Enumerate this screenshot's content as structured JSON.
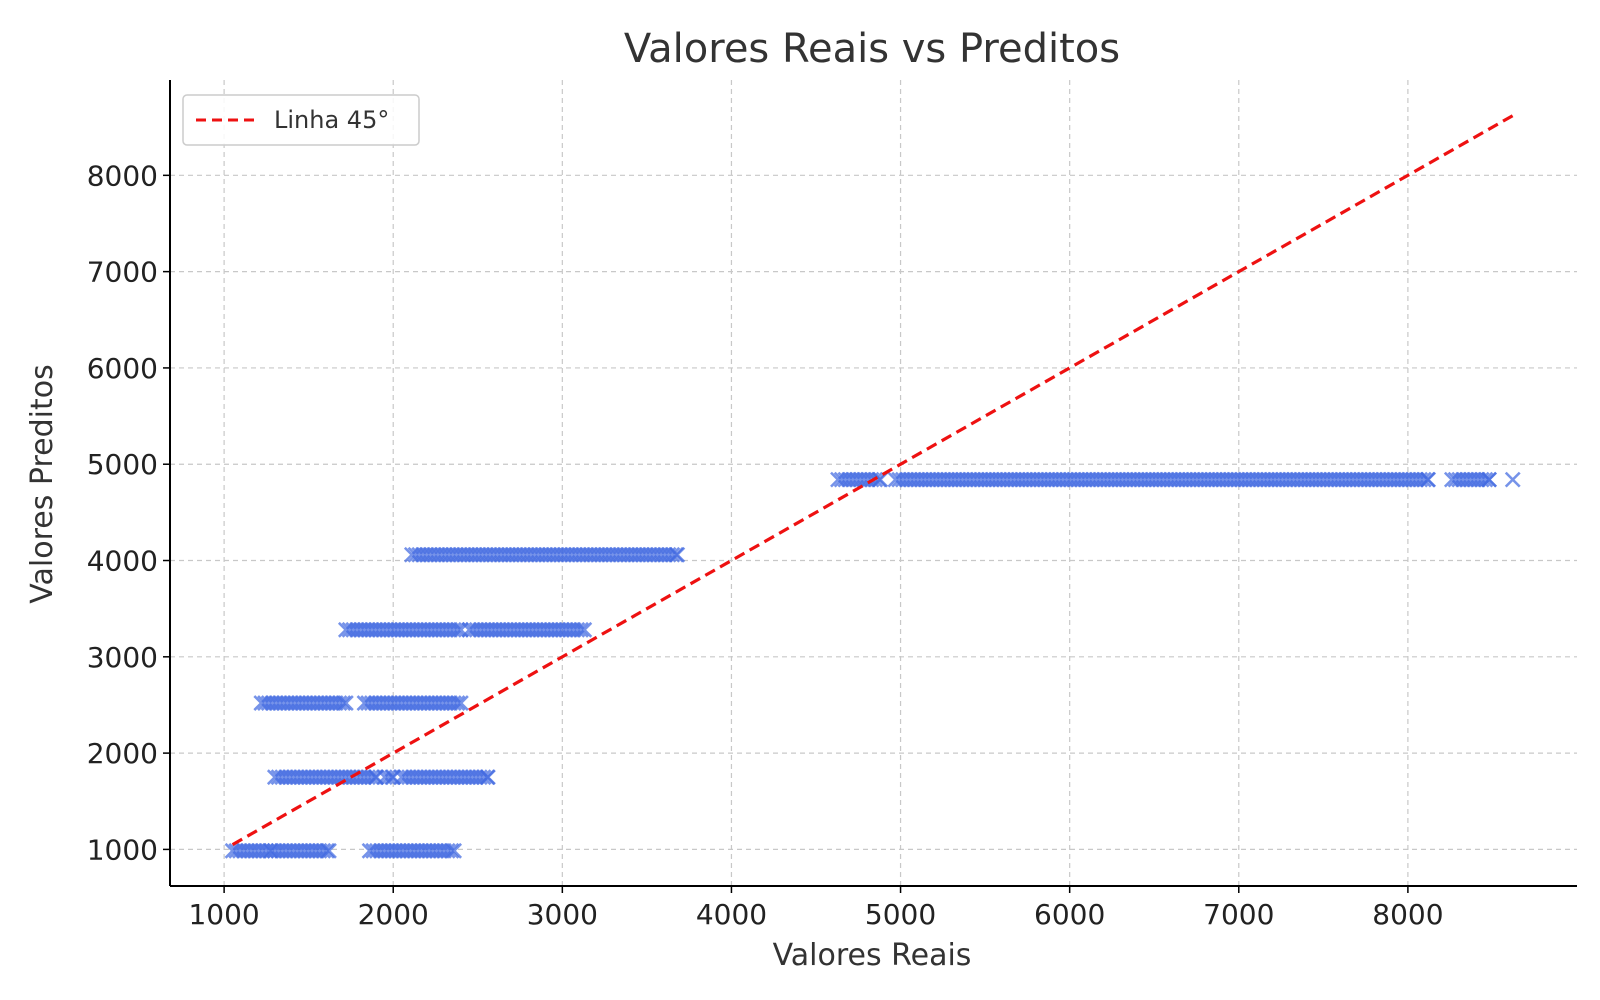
{
  "chart_data": {
    "type": "scatter",
    "title": "Valores Reais vs Preditos",
    "xlabel": "Valores Reais",
    "ylabel": "Valores Preditos",
    "xlim": [
      680,
      9000
    ],
    "ylim": [
      620,
      8990
    ],
    "xticks": [
      1000,
      2000,
      3000,
      4000,
      5000,
      6000,
      7000,
      8000
    ],
    "yticks": [
      1000,
      2000,
      3000,
      4000,
      5000,
      6000,
      7000,
      8000
    ],
    "grid": true,
    "legend": {
      "position": "upper-left",
      "entries": [
        "Linha 45°"
      ]
    },
    "series": [
      {
        "kind": "scatter",
        "marker": "x",
        "color": "#4169e1",
        "groups": [
          {
            "y": 985,
            "x_segments": [
              [
                1050,
                1280
              ],
              [
                1300,
                1620
              ],
              [
                1860,
                2360
              ]
            ]
          },
          {
            "y": 1750,
            "x_segments": [
              [
                1300,
                1900
              ],
              [
                1950,
                2000
              ],
              [
                2050,
                2560
              ]
            ]
          },
          {
            "y": 2520,
            "x_segments": [
              [
                1220,
                1720
              ],
              [
                1830,
                2400
              ]
            ]
          },
          {
            "y": 3280,
            "x_segments": [
              [
                1720,
                2400
              ],
              [
                2450,
                3130
              ]
            ]
          },
          {
            "y": 4060,
            "x_segments": [
              [
                2110,
                3680
              ]
            ]
          },
          {
            "y": 4840,
            "x_segments": [
              [
                4630,
                4880
              ],
              [
                4970,
                8120
              ],
              [
                8260,
                8480
              ]
            ],
            "x_extra": [
              8620
            ]
          }
        ]
      },
      {
        "kind": "line",
        "name": "Linha 45°",
        "style": "dashed",
        "color": "#ee1111",
        "x": [
          1050,
          8620
        ],
        "y": [
          1050,
          8620
        ]
      }
    ]
  }
}
